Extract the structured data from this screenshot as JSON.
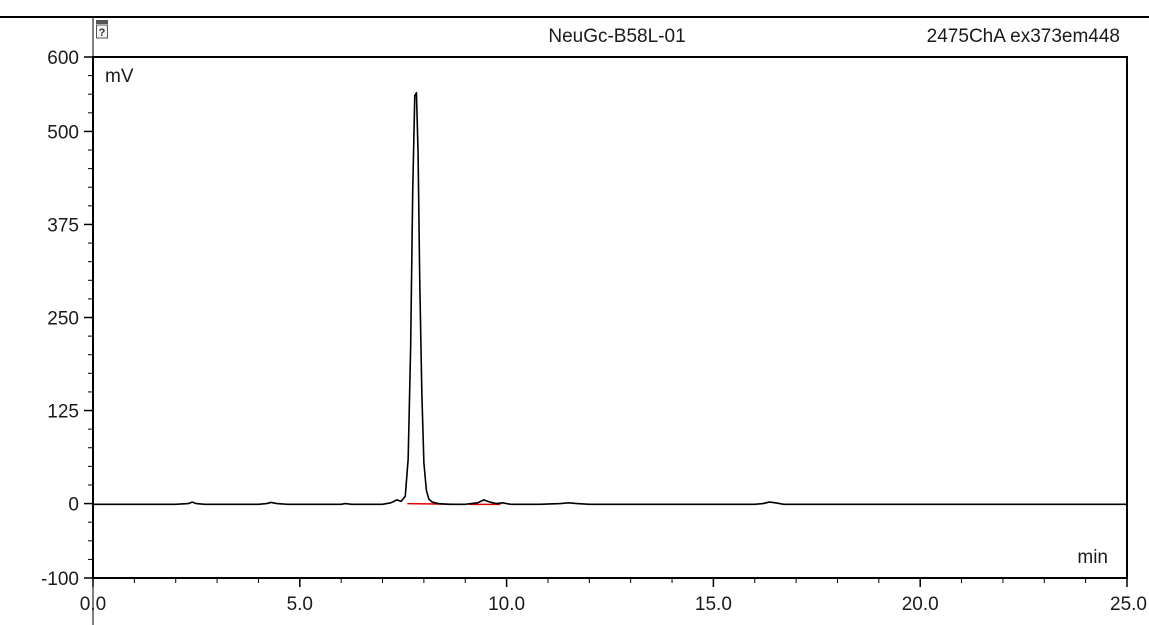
{
  "header": {
    "sample_name": "NeuGc-B58L-01",
    "channel_label": "2475ChA ex373em448",
    "icon": "report-icon"
  },
  "chart_data": {
    "type": "line",
    "title": "",
    "xlabel": "min",
    "ylabel": "mV",
    "xlim": [
      0.0,
      25.0
    ],
    "ylim": [
      -100,
      600
    ],
    "x_ticks": [
      "0.0",
      "5.0",
      "10.0",
      "15.0",
      "20.0",
      "25.0"
    ],
    "y_ticks": [
      "-100",
      "0",
      "125",
      "250",
      "375",
      "500",
      "600"
    ],
    "grid": false,
    "legend": "none",
    "colors": {
      "trace": "#000000",
      "baseline": "#e00000",
      "axis": "#000000"
    },
    "series": [
      {
        "x": [
          0.0,
          2.0,
          2.3,
          2.4,
          2.5,
          2.7,
          4.0,
          4.2,
          4.3,
          4.45,
          4.7,
          6.0,
          6.1,
          6.25,
          7.0,
          7.2,
          7.35,
          7.45,
          7.55,
          7.62,
          7.68,
          7.73,
          7.78,
          7.82,
          7.86,
          7.9,
          7.95,
          8.0,
          8.06,
          8.12,
          8.2,
          8.35,
          8.6,
          9.0,
          9.3,
          9.45,
          9.6,
          9.75,
          9.9,
          10.1,
          10.8,
          11.3,
          11.5,
          11.7,
          12.0,
          16.0,
          16.2,
          16.35,
          16.5,
          16.7,
          18.0,
          25.0
        ],
        "y": [
          -1,
          -1,
          0,
          2,
          0,
          -1,
          -1,
          0,
          1.5,
          0,
          -1,
          -1,
          0,
          -1,
          -1,
          1,
          5,
          3,
          10,
          60,
          210,
          420,
          548,
          552,
          470,
          300,
          150,
          55,
          18,
          6,
          2,
          0,
          -1,
          -1,
          1,
          5,
          2,
          0,
          1,
          -1,
          -1,
          0,
          1,
          0,
          -1,
          -1,
          0,
          2,
          1,
          -1,
          -1,
          -1
        ]
      }
    ],
    "baseline_segments": [
      {
        "x": [
          7.6,
          9.0
        ],
        "y": [
          0,
          -1
        ]
      },
      {
        "x": [
          9.1,
          9.85
        ],
        "y": [
          -1,
          -1
        ]
      }
    ]
  }
}
